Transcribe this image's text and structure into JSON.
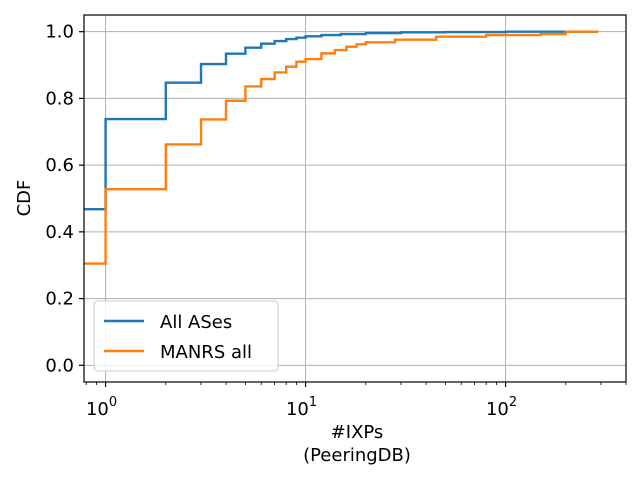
{
  "chart_data": {
    "type": "line",
    "xlabel": [
      "#IXPs",
      "(PeeringDB)"
    ],
    "ylabel": "CDF",
    "xscale": "log",
    "xlim": [
      0.78,
      400
    ],
    "ylim": [
      -0.05,
      1.05
    ],
    "grid": true,
    "legend_position": "lower-left",
    "x_ticks": [
      {
        "value": 1,
        "base": "10",
        "exp": "0"
      },
      {
        "value": 10,
        "base": "10",
        "exp": "1"
      },
      {
        "value": 100,
        "base": "10",
        "exp": "2"
      }
    ],
    "y_ticks": [
      {
        "value": 0.0,
        "label": "0.0"
      },
      {
        "value": 0.2,
        "label": "0.2"
      },
      {
        "value": 0.4,
        "label": "0.4"
      },
      {
        "value": 0.6,
        "label": "0.6"
      },
      {
        "value": 0.8,
        "label": "0.8"
      },
      {
        "value": 1.0,
        "label": "1.0"
      }
    ],
    "series": [
      {
        "name": "All ASes",
        "color": "#1f77b4",
        "steps": [
          [
            0.78,
            0.468
          ],
          [
            1,
            0.738
          ],
          [
            2,
            0.847
          ],
          [
            3,
            0.903
          ],
          [
            4,
            0.934
          ],
          [
            5,
            0.952
          ],
          [
            6,
            0.964
          ],
          [
            7,
            0.972
          ],
          [
            8,
            0.978
          ],
          [
            9,
            0.982
          ],
          [
            10,
            0.986
          ],
          [
            12,
            0.99
          ],
          [
            15,
            0.993
          ],
          [
            20,
            0.996
          ],
          [
            30,
            0.998
          ],
          [
            50,
            0.999
          ],
          [
            100,
            1.0
          ],
          [
            290,
            1.0
          ]
        ]
      },
      {
        "name": "MANRS all",
        "color": "#ff7f0e",
        "steps": [
          [
            0.78,
            0.305
          ],
          [
            1,
            0.528
          ],
          [
            2,
            0.662
          ],
          [
            3,
            0.737
          ],
          [
            4,
            0.793
          ],
          [
            5,
            0.836
          ],
          [
            6,
            0.858
          ],
          [
            7,
            0.878
          ],
          [
            8,
            0.895
          ],
          [
            9,
            0.91
          ],
          [
            10,
            0.918
          ],
          [
            12,
            0.935
          ],
          [
            14,
            0.945
          ],
          [
            16,
            0.955
          ],
          [
            18,
            0.962
          ],
          [
            20,
            0.968
          ],
          [
            28,
            0.976
          ],
          [
            45,
            0.985
          ],
          [
            80,
            0.99
          ],
          [
            150,
            0.993
          ],
          [
            200,
            1.0
          ],
          [
            290,
            1.0
          ]
        ]
      }
    ]
  }
}
